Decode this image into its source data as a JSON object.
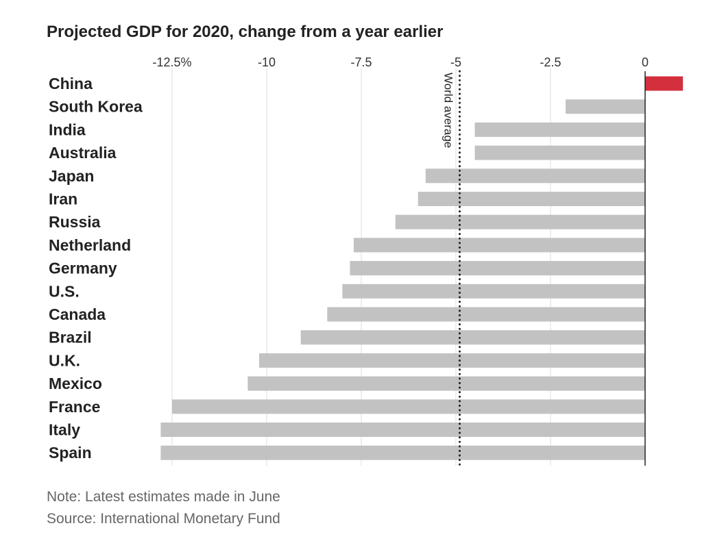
{
  "header": {
    "title": "Projected GDP for 2020, change from a year earlier"
  },
  "footer": {
    "note": "Note: Latest estimates made in June",
    "source": "Source: International Monetary Fund"
  },
  "colors": {
    "positive_bar": "#d32f3c",
    "negative_bar": "#c2c2c2",
    "gridline": "#dddddd",
    "zero_line": "#222222",
    "reference_line": "#222222"
  },
  "chart_data": {
    "type": "bar",
    "orientation": "horizontal",
    "title": "Projected GDP for 2020, change from a year earlier",
    "categories": [
      "China",
      "South Korea",
      "India",
      "Australia",
      "Japan",
      "Iran",
      "Russia",
      "Netherland",
      "Germany",
      "U.S.",
      "Canada",
      "Brazil",
      "U.K.",
      "Mexico",
      "France",
      "Italy",
      "Spain"
    ],
    "values": [
      1.0,
      -2.1,
      -4.5,
      -4.5,
      -5.8,
      -6.0,
      -6.6,
      -7.7,
      -7.8,
      -8.0,
      -8.4,
      -9.1,
      -10.2,
      -10.5,
      -12.5,
      -12.8,
      -12.8
    ],
    "xlim": [
      -13.5,
      1.0
    ],
    "ticks": [
      -12.5,
      -10,
      -7.5,
      -5,
      -2.5,
      0
    ],
    "tick_labels": [
      "-12.5%",
      "-10",
      "-7.5",
      "-5",
      "-2.5",
      "0"
    ],
    "tick_position": "top",
    "grid": true,
    "reference_line": {
      "value": -4.9,
      "label": "World average",
      "style": "dotted"
    }
  }
}
